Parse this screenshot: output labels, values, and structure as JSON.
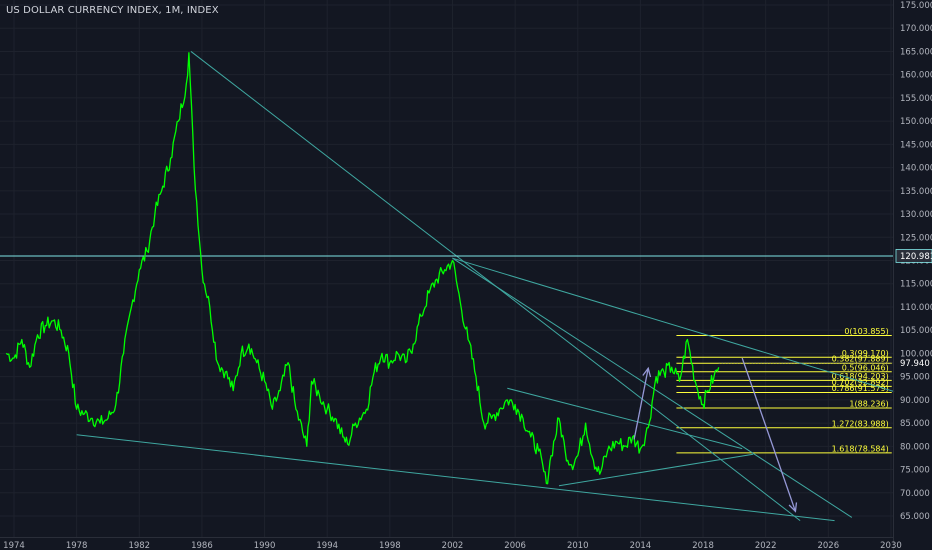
{
  "header": {
    "title": "US DOLLAR CURRENCY INDEX, 1M, INDEX"
  },
  "colors": {
    "background": "#131722",
    "grid": "#1e222d",
    "price_line": "#00ff00",
    "trendline": "#3fa7a0",
    "fib": "#ffff3b",
    "arrow": "#9598d6",
    "axis_text": "#b2b5be",
    "hline": "#7fe5e5"
  },
  "chart_data": {
    "type": "line",
    "title": "US DOLLAR CURRENCY INDEX, 1M, INDEX",
    "xlim": [
      1973.5,
      2030.2
    ],
    "ylim": [
      62.7,
      177.0
    ],
    "x_ticks": [
      "1974",
      "1978",
      "1982",
      "1986",
      "1990",
      "1994",
      "1998",
      "2002",
      "2006",
      "2010",
      "2014",
      "2018",
      "2022",
      "2026",
      "2030"
    ],
    "y_ticks": [
      "65.000",
      "70.000",
      "75.000",
      "80.000",
      "85.000",
      "90.000",
      "95.000",
      "100.000",
      "105.000",
      "110.000",
      "115.000",
      "120.000",
      "125.000",
      "130.000",
      "135.000",
      "140.000",
      "145.000",
      "150.000",
      "155.000",
      "160.000",
      "165.000",
      "170.000",
      "175.000"
    ],
    "grid": true,
    "series": [
      {
        "x": [
          1973.5,
          1974.0,
          1974.5,
          1975.0,
          1975.5,
          1976.0,
          1976.5,
          1977.0,
          1977.5,
          1978.0,
          1978.5,
          1979.0,
          1979.5,
          1980.0,
          1980.5,
          1981.0,
          1981.5,
          1982.0,
          1982.5,
          1983.0,
          1983.5,
          1984.0,
          1984.5,
          1985.0,
          1985.17,
          1985.5,
          1986.0,
          1986.5,
          1987.0,
          1987.5,
          1988.0,
          1988.5,
          1989.0,
          1989.5,
          1990.0,
          1990.5,
          1991.0,
          1991.5,
          1992.0,
          1992.7,
          1993.0,
          1993.5,
          1994.0,
          1994.5,
          1995.0,
          1995.3,
          1995.8,
          1996.5,
          1997.0,
          1997.5,
          1998.0,
          1998.5,
          1999.0,
          1999.5,
          2000.0,
          2000.5,
          2001.0,
          2001.5,
          2002.0,
          2002.5,
          2003.0,
          2003.5,
          2004.0,
          2004.5,
          2005.0,
          2005.5,
          2006.0,
          2006.5,
          2007.0,
          2007.5,
          2008.0,
          2008.3,
          2008.8,
          2009.2,
          2009.6,
          2010.0,
          2010.5,
          2011.0,
          2011.4,
          2011.9,
          2012.5,
          2013.0,
          2013.5,
          2014.0,
          2014.5,
          2015.0,
          2015.5,
          2016.0,
          2016.5,
          2017.0,
          2017.5,
          2018.0,
          2018.3,
          2018.7,
          2019.0
        ],
        "values": [
          100.0,
          99.0,
          103.0,
          97.0,
          104.0,
          106.0,
          107.0,
          105.0,
          100.0,
          88.0,
          87.0,
          86.0,
          85.0,
          86.0,
          89.0,
          100.0,
          110.0,
          118.0,
          122.0,
          130.0,
          136.0,
          142.0,
          150.0,
          158.0,
          164.7,
          140.0,
          118.0,
          110.0,
          98.0,
          96.0,
          92.0,
          100.0,
          102.0,
          98.0,
          94.0,
          88.0,
          92.0,
          98.0,
          88.0,
          80.0,
          94.0,
          91.0,
          88.0,
          86.0,
          82.0,
          80.5,
          85.0,
          88.0,
          96.0,
          100.0,
          98.0,
          100.0,
          98.0,
          102.0,
          108.0,
          113.0,
          116.0,
          118.0,
          120.0,
          111.0,
          103.0,
          95.0,
          85.0,
          86.0,
          88.0,
          90.0,
          89.0,
          86.0,
          82.0,
          79.0,
          72.0,
          78.0,
          86.0,
          79.0,
          76.0,
          78.0,
          85.0,
          77.0,
          74.0,
          79.0,
          81.0,
          80.0,
          82.0,
          79.5,
          84.0,
          95.0,
          96.0,
          97.0,
          94.0,
          103.0,
          94.0,
          89.0,
          92.0,
          95.0,
          97.0
        ]
      }
    ],
    "hline": {
      "value": 120.981,
      "label": "120.981"
    },
    "last_price": {
      "value": 97.94,
      "label": "97.940"
    },
    "fibonacci": [
      {
        "ratio": "0",
        "value": 103.855,
        "label": "0(103.855)"
      },
      {
        "ratio": "0.3",
        "value": 99.17,
        "label": "0.3(99.170)"
      },
      {
        "ratio": "0.382",
        "value": 97.889,
        "label": "0.382(97.889)"
      },
      {
        "ratio": "0.5",
        "value": 96.046,
        "label": "0.5(96.046)"
      },
      {
        "ratio": "0.618",
        "value": 94.203,
        "label": "0.618(94.203)"
      },
      {
        "ratio": "0.702",
        "value": 92.892,
        "label": "0.702(92.892)"
      },
      {
        "ratio": "0.786",
        "value": 91.579,
        "label": "0.786(91.579)"
      },
      {
        "ratio": "1",
        "value": 88.236,
        "label": "1(88.236)"
      },
      {
        "ratio": "1.272",
        "value": 83.988,
        "label": "1.272(83.988)"
      },
      {
        "ratio": "1.618",
        "value": 78.584,
        "label": "1.618(78.584)"
      }
    ],
    "trendlines": [
      {
        "x1": 1985.3,
        "y1": 165.0,
        "x2": 2024.2,
        "y2": 64.0
      },
      {
        "x1": 2002.0,
        "y1": 120.5,
        "x2": 2030.2,
        "y2": 91.8
      },
      {
        "x1": 2002.0,
        "y1": 120.5,
        "x2": 2027.5,
        "y2": 64.7
      },
      {
        "x1": 1978.0,
        "y1": 82.5,
        "x2": 2026.4,
        "y2": 64.0
      },
      {
        "x1": 2005.5,
        "y1": 92.5,
        "x2": 2020.5,
        "y2": 79.5
      },
      {
        "x1": 2008.8,
        "y1": 71.5,
        "x2": 2021.2,
        "y2": 78.3
      }
    ],
    "arrows": [
      {
        "x1": 2013.6,
        "y1": 81.5,
        "x2": 2014.5,
        "y2": 96.8
      },
      {
        "x1": 2020.5,
        "y1": 99.0,
        "x2": 2023.9,
        "y2": 66.0
      }
    ]
  }
}
